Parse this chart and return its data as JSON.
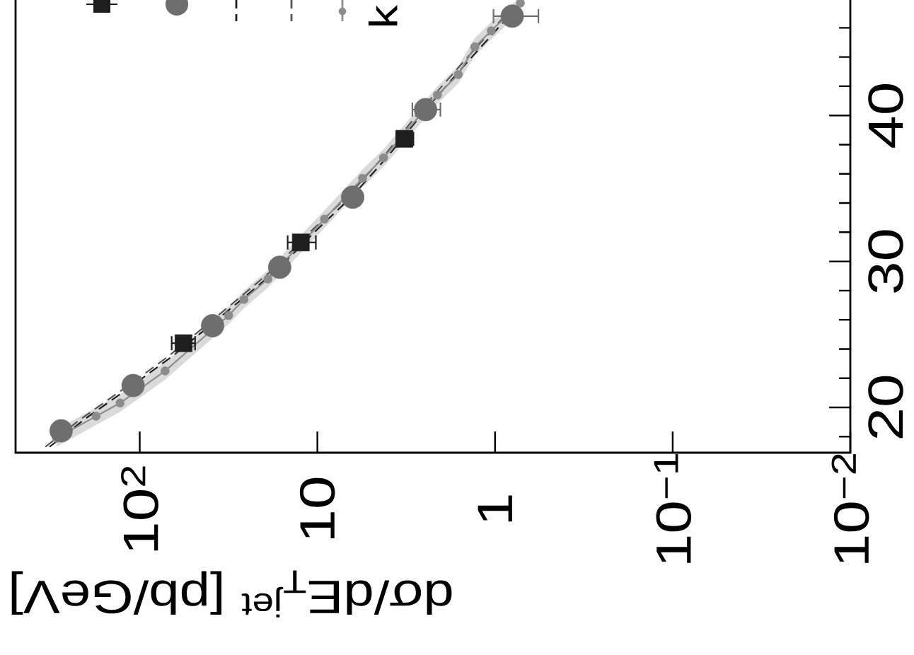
{
  "chart_data": {
    "type": "scatter",
    "xlabel": "dσ/dE$_{T}$$^{jet}$ [pb/GeV]",
    "log": "x",
    "xlim": [
      500,
      0.01
    ],
    "xticks": [
      {
        "value": 100,
        "label": "10$^{2}$"
      },
      10,
      1,
      {
        "value": 0.1,
        "label": "10$^{−1}$"
      },
      {
        "value": 0.01,
        "label": "10$^{−2}$"
      }
    ],
    "ylim": [
      16.9,
      48.1
    ],
    "yticks": [
      {
        "value": 18,
        "label": null
      },
      20,
      {
        "value": 22,
        "label": null
      },
      {
        "value": 24,
        "label": null
      },
      {
        "value": 26,
        "label": null
      },
      {
        "value": 28,
        "label": null
      },
      30,
      {
        "value": 32,
        "label": null
      },
      {
        "value": 34,
        "label": null
      },
      {
        "value": 36,
        "label": null
      },
      {
        "value": 38,
        "label": null
      },
      40,
      {
        "value": 42,
        "label": null
      },
      {
        "value": 44,
        "label": null
      },
      {
        "value": 46,
        "label": null
      }
    ],
    "annotations": [
      "k"
    ],
    "series": [
      {
        "color": "#1e1e1e",
        "marker": "square",
        "x": [
          56.7,
          12.4,
          3.24
        ],
        "values": [
          24.4,
          31.3,
          38.4
        ],
        "xerrors": [
          [
            48.8,
            66.1
          ],
          [
            10.2,
            14.7
          ],
          [
            2.88,
            3.6
          ]
        ]
      },
      {
        "color": "#6e6e6e",
        "marker": "circle",
        "x": [
          277,
          109,
          38.9,
          16.3,
          6.33,
          2.46,
          0.8
        ],
        "values": [
          18.4,
          21.5,
          25.6,
          29.6,
          34.4,
          40.4,
          46.8
        ],
        "xerrors": [
          null,
          null,
          null,
          null,
          null,
          [
            2.03,
            2.92
          ],
          [
            0.57,
            1.02
          ]
        ]
      },
      {
        "type": "line",
        "color": "#1e1e1e",
        "line_style": "dashed",
        "x": [
          322,
          204,
          110,
          65.6,
          39.4,
          24.9,
          16.3,
          10.0,
          6.33,
          4.01,
          2.46,
          1.47,
          0.88,
          0.7
        ],
        "values": [
          17.3,
          19.2,
          21.5,
          23.5,
          25.7,
          27.7,
          29.6,
          32.2,
          34.5,
          37.2,
          40.4,
          43.5,
          46.5,
          47.7
        ]
      },
      {
        "type": "line",
        "color": "#555555",
        "line_style": "dashed",
        "x": [
          340,
          215,
          116,
          69,
          41.6,
          26.3,
          17.2,
          10.6,
          6.7,
          4.23,
          2.6,
          1.55,
          0.93,
          0.74
        ],
        "values": [
          17.3,
          19.2,
          21.5,
          23.5,
          25.7,
          27.7,
          29.6,
          32.2,
          34.5,
          37.2,
          40.4,
          43.5,
          46.5,
          47.7
        ]
      },
      {
        "type": "line",
        "color": "#8c8c8c",
        "line_style": "solid",
        "marker": "circle",
        "x": [
          294,
          176,
          129,
          72,
          31.6,
          25.9,
          19.0,
          9.12,
          5.57,
          4.24,
          2.11,
          1.61,
          1.3,
          1.05,
          0.72
        ],
        "values": [
          17.9,
          19.4,
          20.3,
          22.5,
          26.3,
          27.4,
          28.8,
          32.9,
          35.7,
          37.1,
          41.4,
          42.8,
          44.7,
          45.8,
          47.7
        ],
        "lower": [
          17.3,
          18.8,
          19.7,
          21.9,
          25.7,
          26.8,
          28.2,
          32.3,
          35.1,
          36.5,
          40.8,
          42.2,
          44.1,
          45.2,
          47.1
        ],
        "upper": [
          18.5,
          20.0,
          20.9,
          23.1,
          26.9,
          28.0,
          29.4,
          33.5,
          36.3,
          37.7,
          42.0,
          43.4,
          45.3,
          46.4,
          48.1
        ]
      }
    ]
  }
}
